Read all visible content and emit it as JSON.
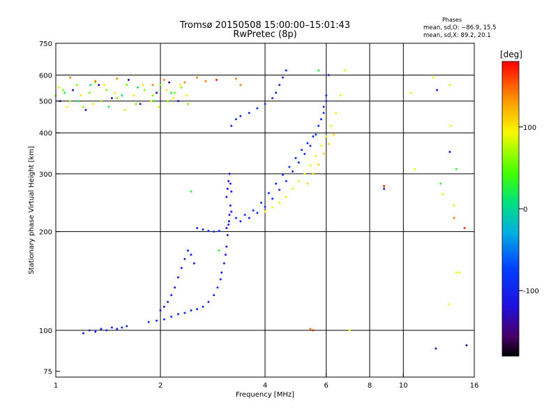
{
  "chart_data": {
    "type": "scatter",
    "title": "Tromsø 20150508 15:00:00–15:01:43",
    "subtitle": "RwPretec (8p)",
    "xlabel": "Frequency [MHz]",
    "ylabel": "Stationary phase Virtual Height [km]",
    "x_scale": "log",
    "y_scale": "log",
    "xlim": [
      1,
      16
    ],
    "ylim": [
      72,
      750
    ],
    "x_ticks": [
      1,
      2,
      4,
      6,
      8,
      10,
      16
    ],
    "x_gridlines": [
      2,
      4,
      6,
      8,
      10
    ],
    "y_ticks": [
      75,
      100,
      200,
      300,
      400,
      500,
      600,
      750
    ],
    "y_gridlines": [
      100,
      200,
      300,
      400,
      500,
      600
    ],
    "grid": true,
    "legend": {
      "title": "Phases",
      "lines": [
        "mean, sd,O: −86.9, 15.5",
        "mean, sd,X:  89.2, 20.1"
      ],
      "placement": "top-right"
    },
    "colorbar": {
      "label": "[deg]",
      "min": -180,
      "max": 180,
      "ticks": [
        100,
        0,
        -100
      ]
    },
    "series": [
      {
        "phase": -100,
        "x": [
          1.2,
          1.25,
          1.3,
          1.35,
          1.4,
          1.45,
          1.5,
          1.55,
          1.6
        ],
        "y": [
          98,
          100,
          99,
          101,
          100,
          102,
          101,
          102,
          103
        ]
      },
      {
        "phase": -95,
        "x": [
          1.85,
          1.95,
          2.05,
          2.15,
          2.25,
          2.35,
          2.45,
          2.55,
          2.65,
          2.75,
          2.85,
          2.92,
          2.98
        ],
        "y": [
          106,
          107,
          108,
          110,
          112,
          113,
          115,
          116,
          118,
          122,
          128,
          135,
          143
        ]
      },
      {
        "phase": -105,
        "x": [
          2.0,
          2.05,
          2.1,
          2.15,
          2.2,
          2.25,
          2.3,
          2.35,
          2.4,
          2.45,
          2.5
        ],
        "y": [
          115,
          118,
          122,
          128,
          135,
          145,
          155,
          165,
          175,
          170,
          160
        ]
      },
      {
        "phase": -110,
        "x": [
          3.0,
          3.05,
          3.08,
          3.1,
          3.12,
          3.14,
          3.16,
          3.18,
          3.2,
          3.15,
          3.1
        ],
        "y": [
          150,
          160,
          170,
          180,
          195,
          210,
          225,
          240,
          230,
          215,
          205
        ]
      },
      {
        "phase": -120,
        "x": [
          3.1,
          3.12,
          3.14,
          3.16,
          3.18,
          3.2
        ],
        "y": [
          255,
          270,
          285,
          300,
          280,
          265
        ]
      },
      {
        "phase": -95,
        "x": [
          2.55,
          2.65,
          2.75,
          2.85,
          2.95
        ],
        "y": [
          205,
          203,
          201,
          200,
          201
        ]
      },
      {
        "phase": -90,
        "x": [
          3.3,
          3.5,
          3.7,
          3.9,
          4.1,
          4.3,
          4.5,
          4.7,
          4.9,
          5.1,
          5.3,
          5.5,
          5.7,
          5.9,
          6.0
        ],
        "y": [
          220,
          225,
          232,
          245,
          262,
          280,
          298,
          315,
          335,
          355,
          372,
          390,
          420,
          460,
          520
        ]
      },
      {
        "phase": -92,
        "x": [
          3.4,
          3.6,
          3.8,
          4.0,
          4.2,
          4.4,
          4.6,
          4.8,
          5.0,
          5.2,
          5.4,
          5.6,
          5.8,
          6.0,
          6.1
        ],
        "y": [
          215,
          220,
          228,
          238,
          252,
          268,
          285,
          305,
          325,
          345,
          365,
          395,
          440,
          500,
          600
        ]
      },
      {
        "phase": -95,
        "x": [
          3.2,
          3.3,
          3.4,
          3.6,
          3.8,
          4.0,
          4.2,
          4.3,
          4.4,
          4.5,
          4.6
        ],
        "y": [
          420,
          440,
          450,
          460,
          475,
          490,
          510,
          530,
          560,
          590,
          620
        ]
      },
      {
        "phase": 90,
        "x": [
          4.0,
          4.2,
          4.4,
          4.6,
          4.8,
          5.0,
          5.2,
          5.4,
          5.6,
          5.8,
          6.0,
          6.2,
          6.4,
          6.6,
          6.8
        ],
        "y": [
          230,
          237,
          245,
          255,
          270,
          285,
          300,
          318,
          340,
          365,
          390,
          420,
          460,
          520,
          620
        ]
      },
      {
        "phase": 110,
        "x": [
          5.3,
          5.5,
          5.7,
          5.9,
          6.1,
          6.3
        ],
        "y": [
          280,
          300,
          320,
          345,
          370,
          395
        ]
      },
      {
        "phase": 60,
        "x": [
          1.0,
          1.05,
          1.1,
          1.15,
          1.2,
          1.25,
          1.3,
          1.35,
          1.4,
          1.5,
          1.6,
          1.7,
          1.8,
          1.9,
          2.0,
          2.1,
          2.2,
          2.3,
          2.4
        ],
        "y": [
          520,
          540,
          500,
          560,
          480,
          530,
          570,
          500,
          540,
          510,
          560,
          490,
          540,
          520,
          560,
          500,
          530,
          550,
          490
        ]
      },
      {
        "phase": 100,
        "x": [
          1.02,
          1.08,
          1.18,
          1.28,
          1.38,
          1.48,
          1.58,
          1.68,
          1.78,
          1.88,
          1.98,
          2.08,
          2.18,
          2.28,
          2.38
        ],
        "y": [
          550,
          480,
          520,
          490,
          560,
          530,
          470,
          520,
          560,
          500,
          480,
          540,
          510,
          560,
          520
        ]
      },
      {
        "phase": -130,
        "x": [
          1.03,
          1.12,
          1.22,
          1.33,
          1.45,
          1.62,
          1.75,
          1.95,
          2.12,
          2.25
        ],
        "y": [
          500,
          540,
          470,
          560,
          510,
          580,
          490,
          530,
          570,
          500
        ]
      },
      {
        "phase": 20,
        "x": [
          1.06,
          1.16,
          1.26,
          1.42,
          1.55,
          1.72,
          1.92,
          2.15
        ],
        "y": [
          530,
          500,
          560,
          480,
          520,
          550,
          500,
          530
        ]
      },
      {
        "phase": 140,
        "x": [
          1.1,
          1.3,
          1.5,
          1.9,
          2.05,
          2.35,
          2.55,
          2.7,
          3.3,
          3.4
        ],
        "y": [
          590,
          575,
          585,
          560,
          580,
          570,
          590,
          575,
          585,
          560
        ]
      },
      {
        "phase": 90,
        "x": [
          7.0,
          10.5,
          10.8,
          12.2,
          13.0,
          13.5,
          13.6,
          13.7,
          14.0,
          14.2,
          14.5
        ],
        "y": [
          100,
          530,
          310,
          590,
          260,
          120,
          560,
          420,
          240,
          150,
          150
        ]
      },
      {
        "phase": -110,
        "x": [
          8.8,
          12.5,
          13.6,
          5.9
        ],
        "y": [
          270,
          540,
          350,
          480
        ]
      },
      {
        "phase": 30,
        "x": [
          2.45,
          2.95,
          5.7,
          14.2,
          12.8
        ],
        "y": [
          265,
          175,
          620,
          310,
          280
        ]
      },
      {
        "phase": 170,
        "x": [
          8.8,
          15.0,
          5.5,
          2.9
        ],
        "y": [
          275,
          205,
          100,
          580
        ]
      },
      {
        "phase": 140,
        "x": [
          14.0,
          5.4
        ],
        "y": [
          220,
          101
        ]
      },
      {
        "phase": -140,
        "x": [
          12.4,
          15.2
        ],
        "y": [
          88,
          90
        ]
      }
    ]
  }
}
